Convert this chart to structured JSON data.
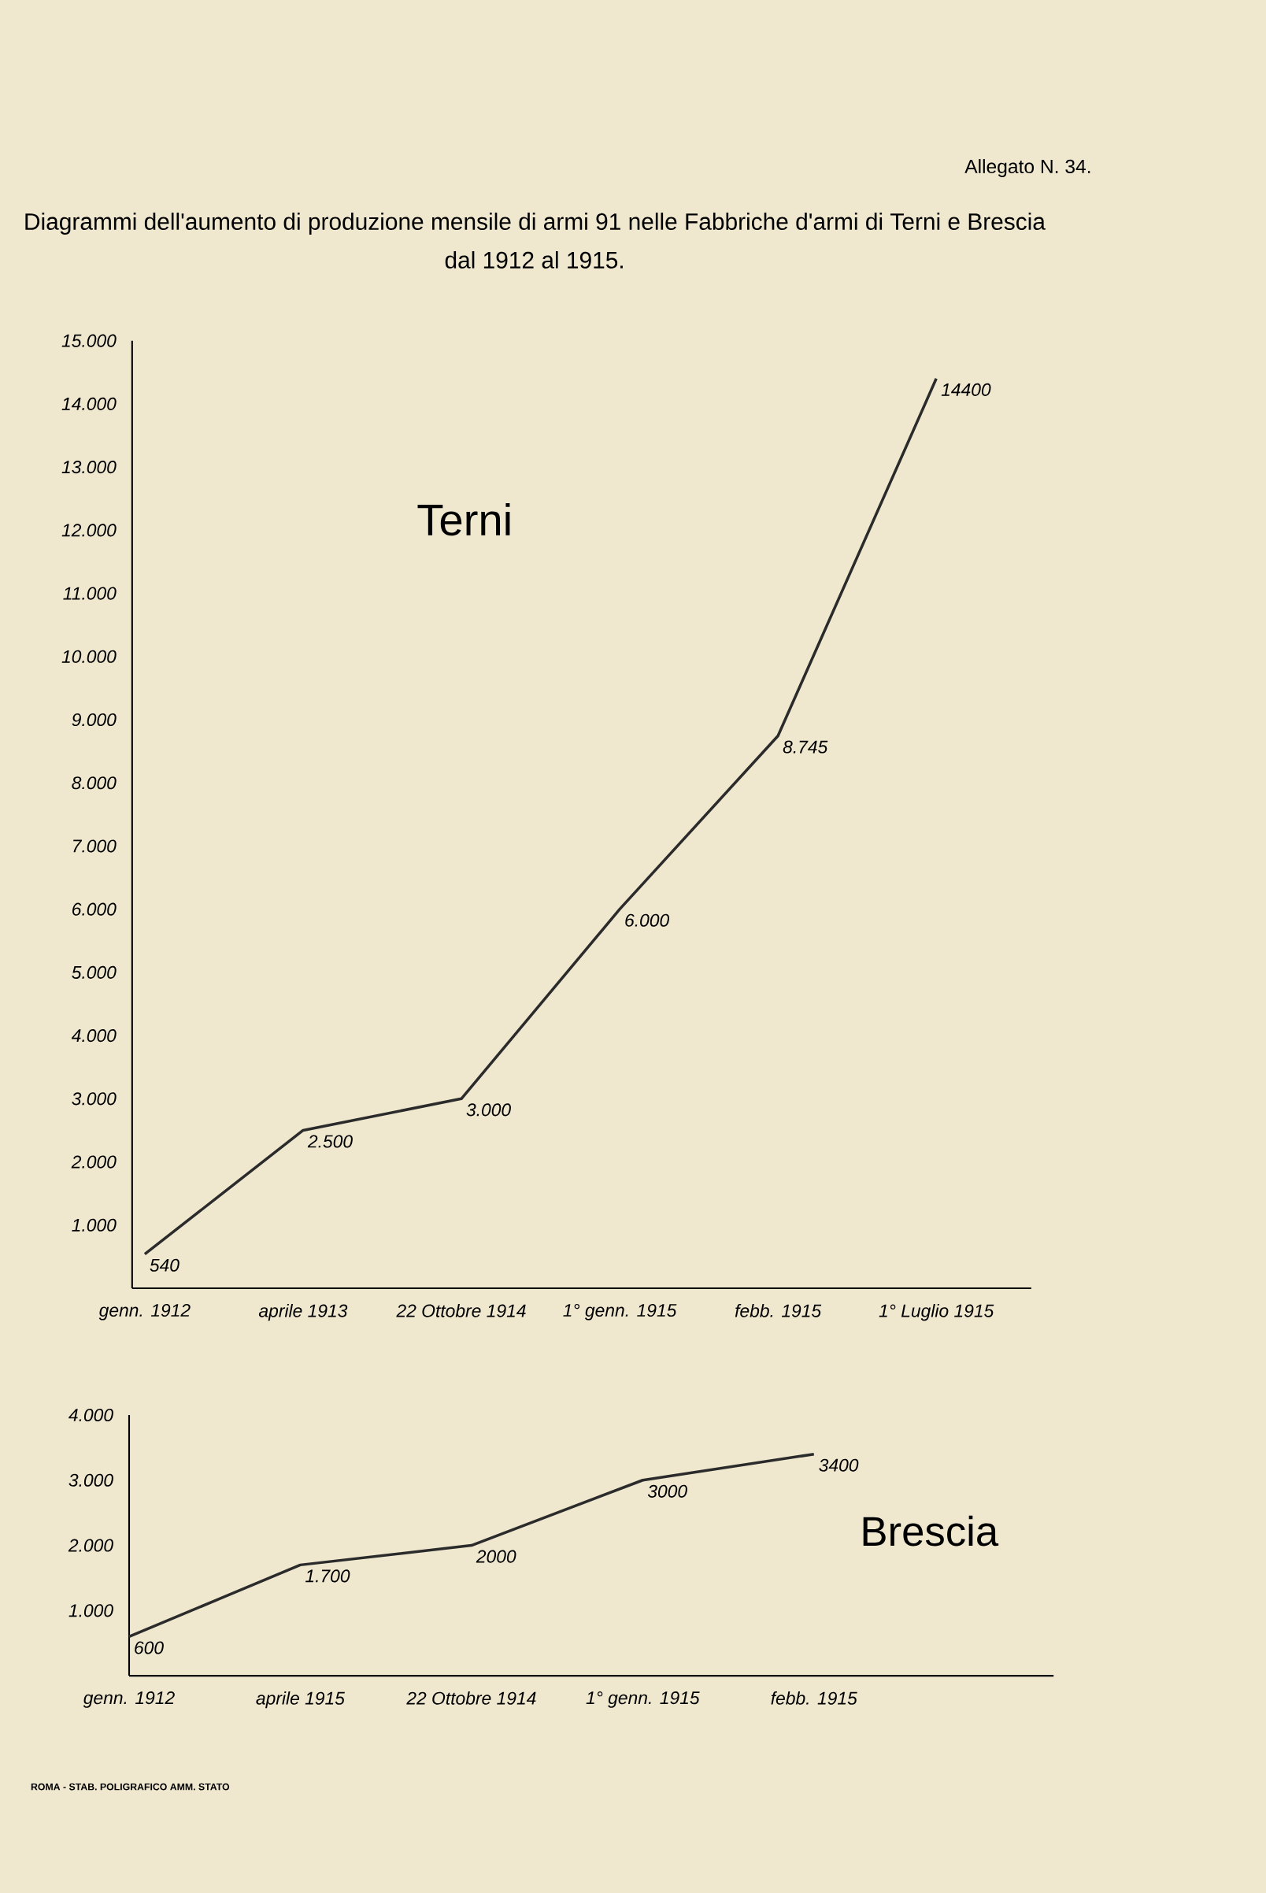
{
  "chart_data": [
    {
      "type": "line",
      "title": "Diagrammi dell'aumento di produzione mensile di armi 91 nelle Fabbriche d'armi di Terni e Brescia",
      "subtitle": "dal 1912 al 1915.",
      "categories": [
        "genn. 1912",
        "aprile 1913",
        "22 Ottobre 1914",
        "1° genn. 1915",
        "febb. 1915",
        "1° Luglio 1915"
      ],
      "series": [
        {
          "color": "#2b2b2b",
          "values": [
            540,
            2500,
            3000,
            6000,
            8745,
            14400
          ],
          "value_labels": [
            "540",
            "2.500",
            "3.000",
            "6.000",
            "8.745",
            "14400"
          ]
        }
      ],
      "ylim": [
        0,
        15000
      ],
      "yticks": [
        {
          "value": 1000,
          "label": "1.000"
        },
        {
          "value": 2000,
          "label": "2.000"
        },
        {
          "value": 3000,
          "label": "3.000"
        },
        {
          "value": 4000,
          "label": "4.000"
        },
        {
          "value": 5000,
          "label": "5.000"
        },
        {
          "value": 6000,
          "label": "6.000"
        },
        {
          "value": 7000,
          "label": "7.000"
        },
        {
          "value": 8000,
          "label": "8.000"
        },
        {
          "value": 9000,
          "label": "9.000"
        },
        {
          "value": 10000,
          "label": "10.000"
        },
        {
          "value": 11000,
          "label": "11.000"
        },
        {
          "value": 12000,
          "label": "12.000"
        },
        {
          "value": 13000,
          "label": "13.000"
        },
        {
          "value": 14000,
          "label": "14.000"
        },
        {
          "value": 15000,
          "label": "15.000"
        }
      ],
      "annotations": [
        "Allegato N. 34.",
        "Terni"
      ]
    },
    {
      "type": "line",
      "categories": [
        "genn. 1912",
        "aprile 1915",
        "22 Ottobre 1914",
        "1° genn. 1915",
        "febb. 1915"
      ],
      "series": [
        {
          "color": "#2b2b2b",
          "values": [
            600,
            1700,
            2000,
            3000,
            3400
          ],
          "value_labels": [
            "600",
            "1.700",
            "2000",
            "3000",
            "3400"
          ]
        }
      ],
      "ylim": [
        0,
        4000
      ],
      "yticks": [
        {
          "value": 1000,
          "label": "1.000"
        },
        {
          "value": 2000,
          "label": "2.000"
        },
        {
          "value": 3000,
          "label": "3.000"
        },
        {
          "value": 4000,
          "label": "4.000"
        }
      ],
      "annotations": [
        "Brescia",
        "ROMA - STAB. POLIGRAFICO AMM. STATO"
      ]
    }
  ]
}
